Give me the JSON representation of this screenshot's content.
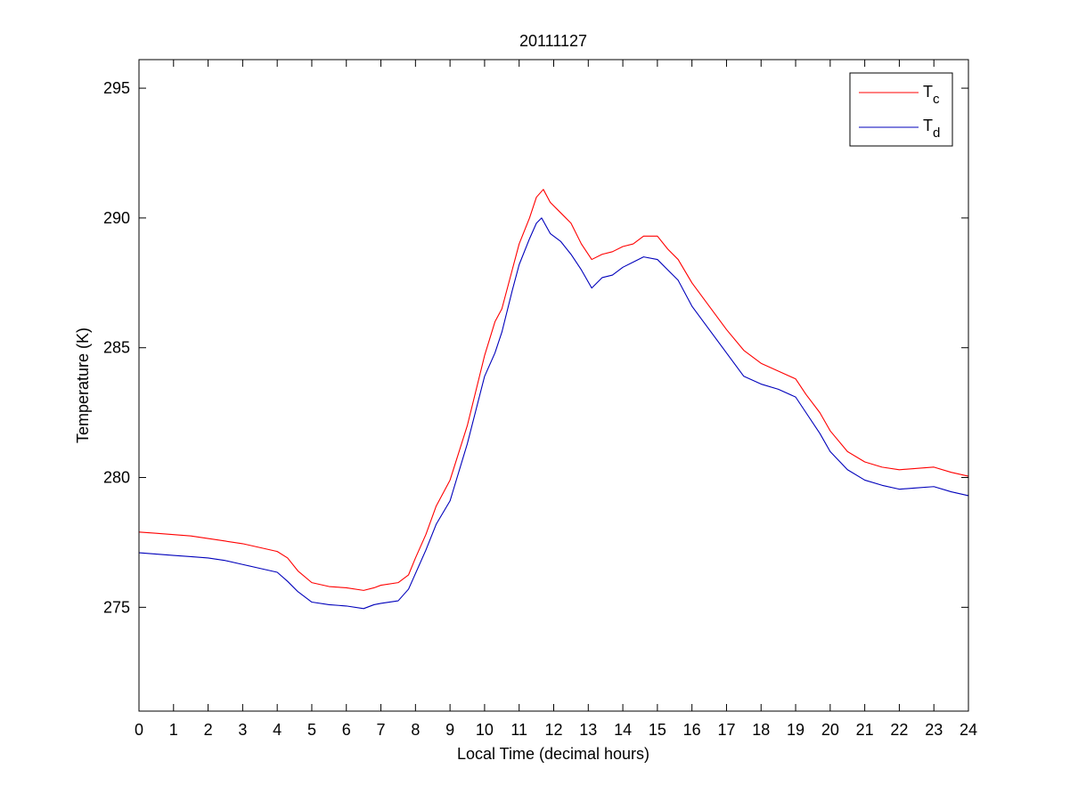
{
  "chart_data": {
    "type": "line",
    "title": "20111127",
    "xlabel": "Local Time (decimal hours)",
    "ylabel": "Temperature (K)",
    "xlim": [
      0,
      24
    ],
    "ylim": [
      271,
      296.1
    ],
    "xticks": [
      0,
      1,
      2,
      3,
      4,
      5,
      6,
      7,
      8,
      9,
      10,
      11,
      12,
      13,
      14,
      15,
      16,
      17,
      18,
      19,
      20,
      21,
      22,
      23,
      24
    ],
    "yticks": [
      275,
      280,
      285,
      290,
      295
    ],
    "grid": false,
    "legend_position": "top-right",
    "series": [
      {
        "name": "T",
        "name_subscript": "c",
        "color": "#ff0000",
        "points": [
          [
            0,
            277.9
          ],
          [
            0.5,
            277.85
          ],
          [
            1,
            277.8
          ],
          [
            1.5,
            277.75
          ],
          [
            2,
            277.65
          ],
          [
            2.5,
            277.55
          ],
          [
            3,
            277.45
          ],
          [
            3.5,
            277.3
          ],
          [
            4,
            277.15
          ],
          [
            4.3,
            276.9
          ],
          [
            4.6,
            276.4
          ],
          [
            5,
            275.95
          ],
          [
            5.5,
            275.8
          ],
          [
            6,
            275.75
          ],
          [
            6.5,
            275.65
          ],
          [
            6.8,
            275.75
          ],
          [
            7,
            275.85
          ],
          [
            7.5,
            275.95
          ],
          [
            7.8,
            276.25
          ],
          [
            8,
            276.9
          ],
          [
            8.3,
            277.8
          ],
          [
            8.6,
            278.9
          ],
          [
            9,
            279.9
          ],
          [
            9.5,
            282.0
          ],
          [
            10,
            284.7
          ],
          [
            10.3,
            286.0
          ],
          [
            10.5,
            286.5
          ],
          [
            10.8,
            288.0
          ],
          [
            11,
            289.0
          ],
          [
            11.3,
            290.0
          ],
          [
            11.5,
            290.8
          ],
          [
            11.7,
            291.1
          ],
          [
            11.9,
            290.6
          ],
          [
            12.2,
            290.2
          ],
          [
            12.5,
            289.8
          ],
          [
            12.8,
            289.0
          ],
          [
            13.1,
            288.4
          ],
          [
            13.4,
            288.6
          ],
          [
            13.7,
            288.7
          ],
          [
            14,
            288.9
          ],
          [
            14.3,
            289.0
          ],
          [
            14.6,
            289.3
          ],
          [
            15,
            289.3
          ],
          [
            15.3,
            288.8
          ],
          [
            15.6,
            288.4
          ],
          [
            16,
            287.5
          ],
          [
            16.5,
            286.6
          ],
          [
            17,
            285.7
          ],
          [
            17.5,
            284.9
          ],
          [
            18,
            284.4
          ],
          [
            18.5,
            284.1
          ],
          [
            19,
            283.8
          ],
          [
            19.3,
            283.2
          ],
          [
            19.7,
            282.5
          ],
          [
            20,
            281.8
          ],
          [
            20.5,
            281.0
          ],
          [
            21,
            280.6
          ],
          [
            21.5,
            280.4
          ],
          [
            22,
            280.3
          ],
          [
            22.5,
            280.35
          ],
          [
            23,
            280.4
          ],
          [
            23.5,
            280.2
          ],
          [
            24,
            280.05
          ]
        ]
      },
      {
        "name": "T",
        "name_subscript": "d",
        "color": "#0000bb",
        "points": [
          [
            0,
            277.1
          ],
          [
            0.5,
            277.05
          ],
          [
            1,
            277.0
          ],
          [
            1.5,
            276.95
          ],
          [
            2,
            276.9
          ],
          [
            2.5,
            276.8
          ],
          [
            3,
            276.65
          ],
          [
            3.5,
            276.5
          ],
          [
            4,
            276.35
          ],
          [
            4.3,
            276.0
          ],
          [
            4.6,
            275.6
          ],
          [
            5,
            275.2
          ],
          [
            5.5,
            275.1
          ],
          [
            6,
            275.05
          ],
          [
            6.5,
            274.95
          ],
          [
            6.8,
            275.1
          ],
          [
            7,
            275.15
          ],
          [
            7.5,
            275.25
          ],
          [
            7.8,
            275.7
          ],
          [
            8,
            276.3
          ],
          [
            8.3,
            277.2
          ],
          [
            8.6,
            278.2
          ],
          [
            9,
            279.1
          ],
          [
            9.5,
            281.3
          ],
          [
            10,
            283.9
          ],
          [
            10.3,
            284.8
          ],
          [
            10.5,
            285.6
          ],
          [
            10.8,
            287.2
          ],
          [
            11,
            288.2
          ],
          [
            11.3,
            289.2
          ],
          [
            11.5,
            289.8
          ],
          [
            11.65,
            290.0
          ],
          [
            11.9,
            289.4
          ],
          [
            12.2,
            289.1
          ],
          [
            12.5,
            288.6
          ],
          [
            12.8,
            288.0
          ],
          [
            13.1,
            287.3
          ],
          [
            13.4,
            287.7
          ],
          [
            13.7,
            287.8
          ],
          [
            14,
            288.1
          ],
          [
            14.3,
            288.3
          ],
          [
            14.6,
            288.5
          ],
          [
            15,
            288.4
          ],
          [
            15.3,
            288.0
          ],
          [
            15.6,
            287.6
          ],
          [
            16,
            286.6
          ],
          [
            16.5,
            285.7
          ],
          [
            17,
            284.8
          ],
          [
            17.5,
            283.9
          ],
          [
            18,
            283.6
          ],
          [
            18.5,
            283.4
          ],
          [
            19,
            283.1
          ],
          [
            19.3,
            282.5
          ],
          [
            19.7,
            281.7
          ],
          [
            20,
            281.0
          ],
          [
            20.5,
            280.3
          ],
          [
            21,
            279.9
          ],
          [
            21.5,
            279.7
          ],
          [
            22,
            279.55
          ],
          [
            22.5,
            279.6
          ],
          [
            23,
            279.65
          ],
          [
            23.5,
            279.45
          ],
          [
            24,
            279.3
          ]
        ]
      }
    ]
  }
}
